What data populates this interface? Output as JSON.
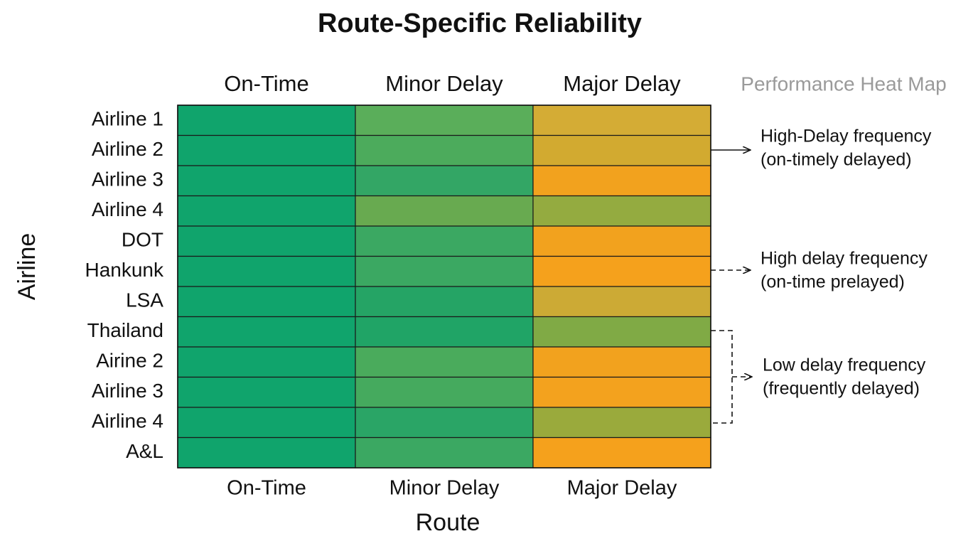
{
  "chart_data": {
    "type": "heatmap",
    "title": "Route-Specific Reliability",
    "subtitle": "Performance Heat Map",
    "x_label": "Route",
    "y_label": "Airline",
    "columns": [
      "On-Time",
      "Minor Delay",
      "Major Delay"
    ],
    "rows": [
      "Airline 1",
      "Airline 2",
      "Airline 3",
      "Airline 4",
      "DOT",
      "Hankunk",
      "LSA",
      "Thailand",
      "Airine 2",
      "Airline 3",
      "Airline 4",
      "A&L"
    ],
    "colors": [
      [
        "#10a46c",
        "#5aae5a",
        "#d4ac35"
      ],
      [
        "#10a46c",
        "#4cab5c",
        "#d2aa30"
      ],
      [
        "#10a46c",
        "#33a665",
        "#f2a21e"
      ],
      [
        "#10a46c",
        "#68aa50",
        "#94ab40"
      ],
      [
        "#10a46c",
        "#3ba862",
        "#f2a21e"
      ],
      [
        "#10a46c",
        "#3ba862",
        "#f5a11c"
      ],
      [
        "#10a46c",
        "#25a465",
        "#ccaa35"
      ],
      [
        "#10a46c",
        "#20a466",
        "#80aa45"
      ],
      [
        "#10a46c",
        "#4aab5c",
        "#f2a21e"
      ],
      [
        "#10a46c",
        "#45aa5e",
        "#f3a21e"
      ],
      [
        "#10a46c",
        "#2aa566",
        "#9aaa3c"
      ],
      [
        "#10a46c",
        "#3ba862",
        "#f5a11c"
      ]
    ],
    "annotations": [
      {
        "lines": [
          "High-Delay frequency",
          "(on-timely delayed)"
        ],
        "line": "solid"
      },
      {
        "lines": [
          "High delay frequency",
          "(on-time prelayed)"
        ],
        "line": "dashed"
      },
      {
        "lines": [
          "Low delay frequency",
          "(frequently delayed)"
        ],
        "line": "dashed"
      }
    ]
  }
}
